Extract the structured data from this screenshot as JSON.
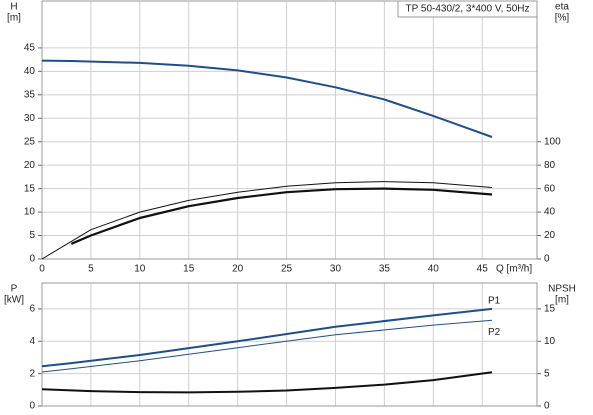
{
  "chart_data": [
    {
      "type": "line",
      "ylabel": "H",
      "yunit": "[m]",
      "y2label": "eta",
      "y2unit": "[%]",
      "xlabel": "Q [m³/h]",
      "annotation": "TP 50-430/2, 3*400 V, 50Hz",
      "xlim": [
        0,
        50.6
      ],
      "xticks": [
        0,
        5,
        10,
        15,
        20,
        25,
        30,
        35,
        40,
        45
      ],
      "ylim": [
        0,
        55
      ],
      "yticks": [
        0,
        5,
        10,
        15,
        20,
        25,
        30,
        35,
        40,
        45
      ],
      "y2lim": [
        0,
        220
      ],
      "y2ticks": [
        0,
        20,
        40,
        60,
        80,
        100
      ],
      "grid": true,
      "series": [
        {
          "color": "#1f4e8c",
          "linewidth": 2,
          "x": [
            0,
            3,
            10,
            15,
            20,
            25,
            30,
            35,
            40,
            46
          ],
          "values": [
            42.3,
            42.2,
            41.8,
            41.2,
            40.2,
            38.7,
            36.6,
            34,
            30.5,
            26
          ]
        },
        {
          "color": "#111111",
          "linewidth": 1,
          "axis": "y2",
          "x": [
            0,
            5,
            10,
            15,
            20,
            25,
            30,
            35,
            40,
            46
          ],
          "values": [
            0,
            25,
            40,
            50,
            57,
            62,
            65,
            66,
            65,
            61
          ]
        },
        {
          "color": "#111111",
          "linewidth": 2.2,
          "axis": "y2",
          "x": [
            3,
            5,
            10,
            15,
            20,
            25,
            30,
            35,
            40,
            46
          ],
          "values": [
            13,
            20,
            35,
            45,
            52,
            57,
            59.5,
            60,
            59,
            55
          ]
        }
      ]
    },
    {
      "type": "line",
      "ylabel": "P",
      "yunit": "[kW]",
      "y2label": "NPSH",
      "y2unit": "[m]",
      "xlim": [
        0,
        50.6
      ],
      "xticks": [
        0,
        5,
        10,
        15,
        20,
        25,
        30,
        35,
        40,
        45
      ],
      "ylim": [
        0,
        7.6
      ],
      "yticks": [
        0,
        2,
        4,
        6
      ],
      "y2lim": [
        0,
        19
      ],
      "y2ticks": [
        0,
        5,
        10,
        15
      ],
      "grid": true,
      "series": [
        {
          "name": "P1",
          "color": "#1f4e8c",
          "linewidth": 2,
          "x": [
            0,
            3,
            10,
            20,
            30,
            40,
            46
          ],
          "values": [
            2.45,
            2.65,
            3.15,
            4.0,
            4.9,
            5.6,
            6.0
          ]
        },
        {
          "name": "P2",
          "color": "#1f4e8c",
          "linewidth": 1,
          "x": [
            0,
            3,
            10,
            20,
            30,
            40,
            46
          ],
          "values": [
            2.1,
            2.3,
            2.8,
            3.6,
            4.4,
            5.0,
            5.3
          ]
        },
        {
          "color": "#111111",
          "linewidth": 2,
          "axis": "y2",
          "x": [
            0,
            5,
            10,
            15,
            20,
            25,
            30,
            35,
            40,
            46
          ],
          "values": [
            2.6,
            2.3,
            2.15,
            2.1,
            2.2,
            2.4,
            2.8,
            3.3,
            4.0,
            5.2
          ]
        }
      ]
    }
  ]
}
